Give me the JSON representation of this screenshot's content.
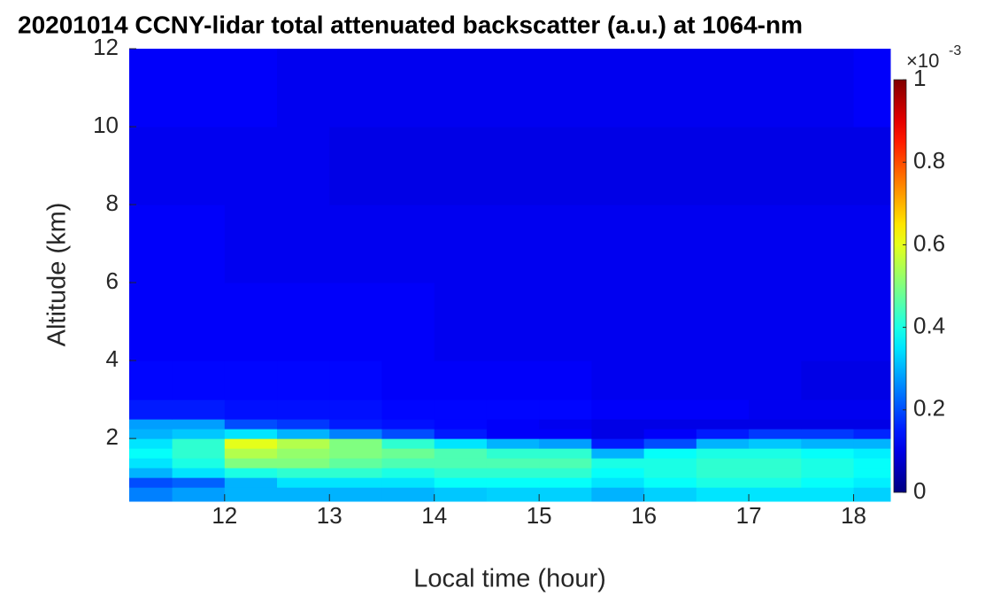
{
  "chart_data": {
    "type": "heatmap",
    "title": "20201014 CCNY-lidar total attenuated backscatter (a.u.) at 1064-nm",
    "x_label": "Local time (hour)",
    "y_label": "Altitude (km)",
    "xlim": [
      11.09,
      18.35
    ],
    "ylim": [
      0.39,
      12
    ],
    "xticks": [
      12,
      13,
      14,
      15,
      16,
      17,
      18
    ],
    "yticks": [
      2,
      4,
      6,
      8,
      10,
      12
    ],
    "x_edges": [
      11.09,
      11.5,
      12,
      12.5,
      13,
      13.5,
      14,
      14.5,
      15,
      15.5,
      16,
      16.5,
      17,
      17.5,
      18,
      18.35
    ],
    "y_edges": [
      0.39,
      0.75,
      1.0,
      1.25,
      1.5,
      1.75,
      2.0,
      2.25,
      2.5,
      3,
      4,
      6,
      8,
      10,
      12
    ],
    "z": [
      [
        0.25,
        0.28,
        0.3,
        0.3,
        0.3,
        0.3,
        0.32,
        0.33,
        0.33,
        0.3,
        0.33,
        0.35,
        0.35,
        0.35,
        0.33
      ],
      [
        0.2,
        0.22,
        0.3,
        0.35,
        0.35,
        0.35,
        0.38,
        0.38,
        0.38,
        0.35,
        0.38,
        0.4,
        0.4,
        0.38,
        0.36
      ],
      [
        0.3,
        0.35,
        0.4,
        0.42,
        0.42,
        0.4,
        0.42,
        0.42,
        0.42,
        0.38,
        0.4,
        0.42,
        0.42,
        0.4,
        0.38
      ],
      [
        0.35,
        0.4,
        0.5,
        0.5,
        0.47,
        0.45,
        0.45,
        0.45,
        0.45,
        0.4,
        0.4,
        0.42,
        0.42,
        0.4,
        0.38
      ],
      [
        0.38,
        0.42,
        0.55,
        0.52,
        0.5,
        0.48,
        0.45,
        0.42,
        0.42,
        0.3,
        0.38,
        0.4,
        0.4,
        0.38,
        0.36
      ],
      [
        0.35,
        0.42,
        0.6,
        0.55,
        0.5,
        0.42,
        0.35,
        0.3,
        0.28,
        0.15,
        0.2,
        0.3,
        0.32,
        0.3,
        0.3
      ],
      [
        0.3,
        0.32,
        0.35,
        0.3,
        0.25,
        0.2,
        0.15,
        0.12,
        0.12,
        0.1,
        0.12,
        0.15,
        0.18,
        0.18,
        0.16
      ],
      [
        0.28,
        0.28,
        0.2,
        0.18,
        0.15,
        0.14,
        0.13,
        0.12,
        0.11,
        0.1,
        0.1,
        0.1,
        0.1,
        0.1,
        0.1
      ],
      [
        0.15,
        0.15,
        0.14,
        0.14,
        0.14,
        0.13,
        0.13,
        0.13,
        0.13,
        0.12,
        0.12,
        0.12,
        0.11,
        0.11,
        0.11
      ],
      [
        0.13,
        0.13,
        0.13,
        0.13,
        0.13,
        0.12,
        0.12,
        0.12,
        0.12,
        0.11,
        0.11,
        0.11,
        0.11,
        0.1,
        0.1
      ],
      [
        0.12,
        0.12,
        0.12,
        0.12,
        0.12,
        0.12,
        0.11,
        0.11,
        0.11,
        0.11,
        0.11,
        0.11,
        0.11,
        0.11,
        0.11
      ],
      [
        0.12,
        0.12,
        0.11,
        0.11,
        0.11,
        0.11,
        0.11,
        0.11,
        0.11,
        0.11,
        0.11,
        0.11,
        0.11,
        0.11,
        0.11
      ],
      [
        0.11,
        0.11,
        0.11,
        0.11,
        0.1,
        0.1,
        0.1,
        0.1,
        0.1,
        0.1,
        0.1,
        0.1,
        0.1,
        0.1,
        0.1
      ],
      [
        0.12,
        0.12,
        0.12,
        0.11,
        0.11,
        0.11,
        0.11,
        0.11,
        0.11,
        0.11,
        0.11,
        0.11,
        0.11,
        0.11,
        0.12
      ]
    ],
    "colormap": "jet",
    "colorbar": {
      "lim": [
        0,
        1
      ],
      "ticks": [
        0,
        0.2,
        0.4,
        0.6,
        0.8,
        1
      ],
      "multiplier": "×10",
      "exponent": "-3"
    }
  }
}
